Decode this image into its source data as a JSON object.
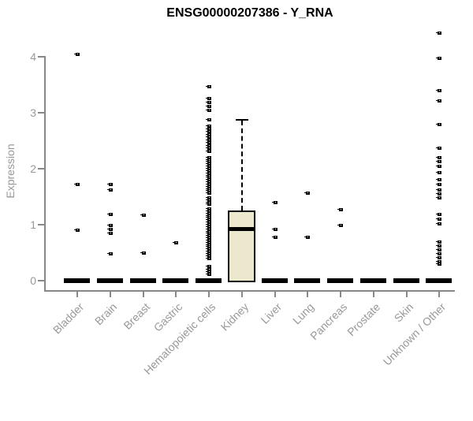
{
  "title": "ENSG00000207386 - Y_RNA",
  "y_axis_label": "Expression",
  "chart_data": {
    "type": "boxplot",
    "title": "ENSG00000207386 - Y_RNA",
    "xlabel": "",
    "ylabel": "Expression",
    "ylim": [
      0,
      4.5
    ],
    "yticks": [
      0,
      1,
      2,
      3,
      4
    ],
    "grid": false,
    "legend": false,
    "colors": {
      "data": "#000000",
      "box_fill": "#ece8cd",
      "axis": "#888888",
      "tick_label": "#999999",
      "title": "#000000"
    },
    "categories": [
      "Bladder",
      "Brain",
      "Breast",
      "Gastric",
      "Hematopoietic cells",
      "Kidney",
      "Liver",
      "Lung",
      "Pancreas",
      "Prostate",
      "Skin",
      "Unknown / Other"
    ],
    "groups": [
      {
        "category": "Bladder",
        "q1": 0,
        "median": 0,
        "q3": 0,
        "whisker_low": 0,
        "whisker_high": 0,
        "points": [
          4.04,
          1.72,
          0.9
        ]
      },
      {
        "category": "Brain",
        "q1": 0,
        "median": 0,
        "q3": 0,
        "whisker_low": 0,
        "whisker_high": 0,
        "points": [
          1.72,
          1.62,
          1.18,
          0.99,
          0.91,
          0.84,
          0.48
        ]
      },
      {
        "category": "Breast",
        "q1": 0,
        "median": 0,
        "q3": 0,
        "whisker_low": 0,
        "whisker_high": 0,
        "points": [
          1.17,
          0.49
        ]
      },
      {
        "category": "Gastric",
        "q1": 0,
        "median": 0,
        "q3": 0,
        "whisker_low": 0,
        "whisker_high": 0,
        "points": [
          0.68
        ]
      },
      {
        "category": "Hematopoietic cells",
        "q1": 0,
        "median": 0,
        "q3": 0,
        "whisker_low": 0,
        "whisker_high": 0,
        "points": [
          3.46,
          3.25,
          3.18,
          3.11,
          3.04,
          2.87,
          2.76,
          2.71,
          2.66,
          2.61,
          2.56,
          2.51,
          2.46,
          2.41,
          2.36,
          2.31,
          2.2,
          2.16,
          2.12,
          2.08,
          2.04,
          2.0,
          1.96,
          1.92,
          1.88,
          1.84,
          1.8,
          1.76,
          1.72,
          1.68,
          1.64,
          1.6,
          1.56,
          1.48,
          1.44,
          1.4,
          1.36,
          1.28,
          1.24,
          1.2,
          1.16,
          1.12,
          1.08,
          1.04,
          1.0,
          0.96,
          0.92,
          0.88,
          0.84,
          0.8,
          0.76,
          0.72,
          0.68,
          0.64,
          0.6,
          0.56,
          0.52,
          0.48,
          0.44,
          0.4,
          0.25,
          0.2,
          0.15,
          0.11
        ]
      },
      {
        "category": "Kidney",
        "q1": 0,
        "median": 0.93,
        "q3": 1.23,
        "whisker_low": 0,
        "whisker_high": 2.88,
        "points": []
      },
      {
        "category": "Liver",
        "q1": 0,
        "median": 0,
        "q3": 0,
        "whisker_low": 0,
        "whisker_high": 0,
        "points": [
          1.4,
          0.91,
          0.77
        ]
      },
      {
        "category": "Lung",
        "q1": 0,
        "median": 0,
        "q3": 0,
        "whisker_low": 0,
        "whisker_high": 0,
        "points": [
          1.56,
          0.78
        ]
      },
      {
        "category": "Pancreas",
        "q1": 0,
        "median": 0,
        "q3": 0,
        "whisker_low": 0,
        "whisker_high": 0,
        "points": [
          1.27,
          0.98
        ]
      },
      {
        "category": "Prostate",
        "q1": 0,
        "median": 0,
        "q3": 0,
        "whisker_low": 0,
        "whisker_high": 0,
        "points": []
      },
      {
        "category": "Skin",
        "q1": 0,
        "median": 0,
        "q3": 0,
        "whisker_low": 0,
        "whisker_high": 0,
        "points": []
      },
      {
        "category": "Unknown / Other",
        "q1": 0,
        "median": 0,
        "q3": 0,
        "whisker_low": 0,
        "whisker_high": 0,
        "points": [
          4.42,
          3.97,
          3.39,
          3.21,
          2.79,
          2.37,
          2.2,
          2.13,
          2.04,
          1.93,
          1.8,
          1.72,
          1.62,
          1.55,
          1.48,
          1.18,
          1.1,
          1.01,
          0.69,
          0.62,
          0.55,
          0.48,
          0.41,
          0.34,
          0.3
        ]
      }
    ]
  }
}
